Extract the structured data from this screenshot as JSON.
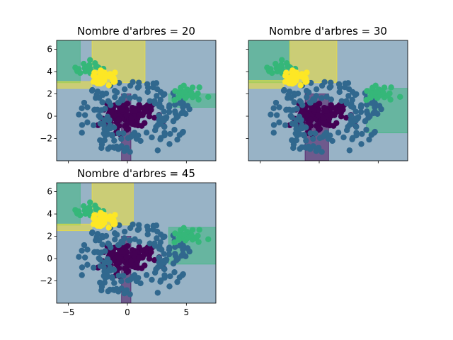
{
  "chart_data": [
    {
      "type": "scatter",
      "title": "Nombre d'arbres = 20",
      "xlabel": "",
      "ylabel": "",
      "xlim": [
        -6,
        7.5
      ],
      "ylim": [
        -4,
        6.8
      ],
      "xticks": [],
      "yticks": [
        -2,
        0,
        2,
        4,
        6
      ],
      "grid": false,
      "legend": "none",
      "classes": [
        {
          "label": "0",
          "color": "#440154",
          "center": [
            0,
            0
          ],
          "spread": 1.0
        },
        {
          "label": "1",
          "color": "#31688e",
          "center": [
            0.5,
            0
          ],
          "spread": 2.6
        },
        {
          "label": "2",
          "color": "#35b779",
          "center": [
            5,
            2
          ],
          "spread": 0.6
        },
        {
          "label": "3",
          "color": "#35b779",
          "center": [
            -3.5,
            4.2
          ],
          "spread": 0.6
        },
        {
          "label": "4",
          "color": "#fde725",
          "center": [
            -2,
            3.4
          ],
          "spread": 0.5
        }
      ],
      "regions": [
        {
          "class": "1",
          "x": [
            -6,
            7.5
          ],
          "y": [
            -4,
            6.8
          ]
        },
        {
          "class": "0",
          "x": [
            -0.5,
            0.3
          ],
          "y": [
            -4,
            2
          ]
        },
        {
          "class": "2",
          "x": [
            3.5,
            7.5
          ],
          "y": [
            0.8,
            2.0
          ]
        },
        {
          "class": "2",
          "x": [
            -6,
            -4
          ],
          "y": [
            3,
            6.8
          ]
        },
        {
          "class": "4",
          "x": [
            -3,
            1.5
          ],
          "y": [
            3,
            6.8
          ]
        },
        {
          "class": "4",
          "x": [
            -6,
            -3
          ],
          "y": [
            2.5,
            3.1
          ]
        }
      ]
    },
    {
      "type": "scatter",
      "title": "Nombre d'arbres = 30",
      "xlabel": "",
      "ylabel": "",
      "xlim": [
        -6,
        7.5
      ],
      "ylim": [
        -4,
        6.8
      ],
      "xticks": [],
      "yticks": [],
      "grid": false,
      "legend": "none",
      "classes": [
        {
          "label": "0",
          "color": "#440154",
          "center": [
            0,
            0
          ],
          "spread": 1.0
        },
        {
          "label": "1",
          "color": "#31688e",
          "center": [
            0.5,
            0
          ],
          "spread": 2.6
        },
        {
          "label": "2",
          "color": "#35b779",
          "center": [
            5,
            2
          ],
          "spread": 0.6
        },
        {
          "label": "3",
          "color": "#35b779",
          "center": [
            -3.5,
            4.2
          ],
          "spread": 0.6
        },
        {
          "label": "4",
          "color": "#fde725",
          "center": [
            -2,
            3.4
          ],
          "spread": 0.5
        }
      ],
      "regions": [
        {
          "class": "1",
          "x": [
            -6,
            7.5
          ],
          "y": [
            -4,
            6.8
          ]
        },
        {
          "class": "0",
          "x": [
            -1.2,
            0.8
          ],
          "y": [
            -4,
            2
          ]
        },
        {
          "class": "2",
          "x": [
            4,
            7.5
          ],
          "y": [
            -1.5,
            2.5
          ]
        },
        {
          "class": "2",
          "x": [
            -6,
            -2.5
          ],
          "y": [
            3,
            6.8
          ]
        },
        {
          "class": "4",
          "x": [
            -2.5,
            1.5
          ],
          "y": [
            3,
            6.8
          ]
        },
        {
          "class": "4",
          "x": [
            -6,
            -3
          ],
          "y": [
            2.5,
            3.2
          ]
        }
      ]
    },
    {
      "type": "scatter",
      "title": "Nombre d'arbres = 45",
      "xlabel": "",
      "ylabel": "",
      "xlim": [
        -6,
        7.5
      ],
      "ylim": [
        -4,
        6.8
      ],
      "xticks": [
        -5,
        0,
        5
      ],
      "yticks": [
        -2,
        0,
        2,
        4,
        6
      ],
      "grid": false,
      "legend": "none",
      "classes": [
        {
          "label": "0",
          "color": "#440154",
          "center": [
            0,
            0
          ],
          "spread": 1.0
        },
        {
          "label": "1",
          "color": "#31688e",
          "center": [
            0.5,
            0
          ],
          "spread": 2.6
        },
        {
          "label": "2",
          "color": "#35b779",
          "center": [
            5,
            2
          ],
          "spread": 0.6
        },
        {
          "label": "3",
          "color": "#35b779",
          "center": [
            -3.5,
            4.2
          ],
          "spread": 0.6
        },
        {
          "label": "4",
          "color": "#fde725",
          "center": [
            -2,
            3.4
          ],
          "spread": 0.5
        }
      ],
      "regions": [
        {
          "class": "1",
          "x": [
            -6,
            7.5
          ],
          "y": [
            -4,
            6.8
          ]
        },
        {
          "class": "0",
          "x": [
            -0.5,
            0.3
          ],
          "y": [
            -4,
            2
          ]
        },
        {
          "class": "2",
          "x": [
            3.5,
            7.5
          ],
          "y": [
            -0.5,
            2.8
          ]
        },
        {
          "class": "2",
          "x": [
            -6,
            -4
          ],
          "y": [
            3,
            6.8
          ]
        },
        {
          "class": "4",
          "x": [
            -3,
            0.5
          ],
          "y": [
            3,
            6.8
          ]
        },
        {
          "class": "4",
          "x": [
            -6,
            -3
          ],
          "y": [
            2.5,
            3.1
          ]
        }
      ]
    }
  ]
}
